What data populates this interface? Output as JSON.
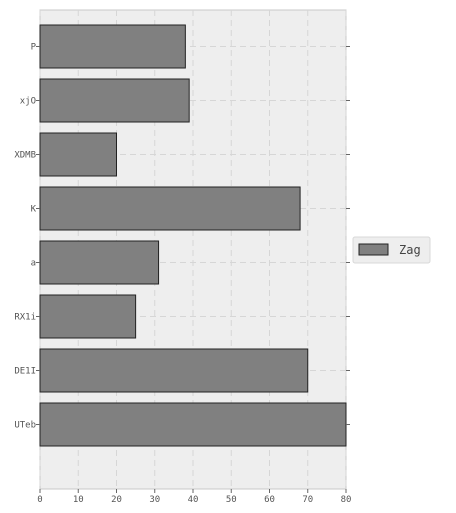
{
  "chart_data": {
    "type": "bar",
    "orientation": "horizontal",
    "categories": [
      "P",
      "xjO",
      "XDMB",
      "K",
      "a",
      "RX1i",
      "DE1I",
      "UTeb"
    ],
    "series": [
      {
        "name": "Zag",
        "values": [
          38,
          39,
          20,
          68,
          31,
          25,
          70,
          80
        ],
        "color": "#808080"
      }
    ],
    "xlim": [
      0,
      80
    ],
    "xticks": [
      0,
      10,
      20,
      30,
      40,
      50,
      60,
      70,
      80
    ],
    "title": "",
    "xlabel": "",
    "ylabel": "",
    "grid": true,
    "legend_position": "right",
    "plot_background": "#eeeeee",
    "grid_color": "#d6d6d6",
    "bar_edge_color": "#222222"
  }
}
